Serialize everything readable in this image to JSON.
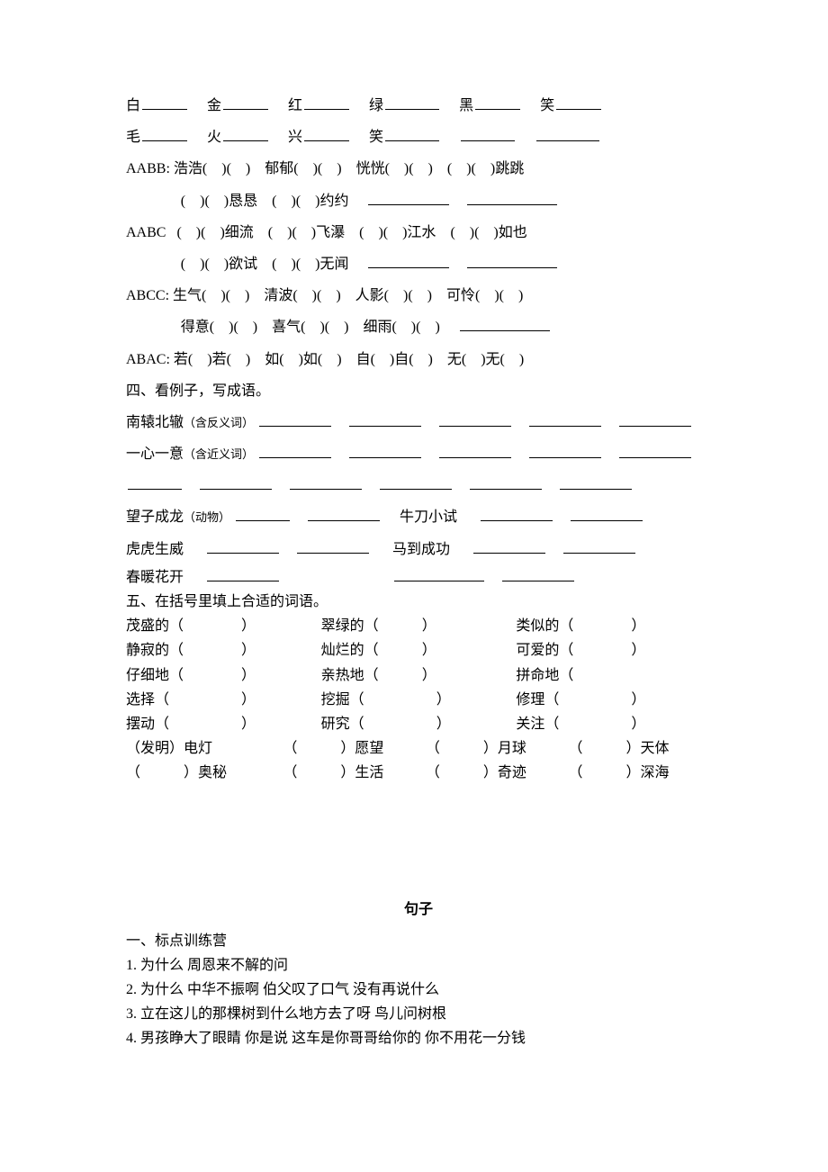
{
  "row1": {
    "chars": [
      "白",
      "金",
      "红",
      "绿",
      "黑",
      "笑"
    ]
  },
  "row2": {
    "chars": [
      "毛",
      "火",
      "兴",
      "笑"
    ]
  },
  "aabb": {
    "label": "AABB:",
    "items1": [
      "浩浩(　)(　)",
      "郁郁(　)(　)",
      "恍恍(　)(　)",
      "(　)(　)跳跳"
    ],
    "items2": [
      "(　)(　)恳恳",
      "(　)(　)约约"
    ]
  },
  "aabc": {
    "label": "AABC",
    "items1": [
      "(　)(　)细流",
      "(　)(　)飞瀑",
      "(　)(　)江水",
      "(　)(　)如也"
    ],
    "items2": [
      "(　)(　)欲试",
      "(　)(　)无闻"
    ]
  },
  "abcc": {
    "label": "ABCC:",
    "items1": [
      "生气(　)(　)",
      "清波(　)(　)",
      "人影(　)(　)",
      "可怜(　)(　)"
    ],
    "items2": [
      "得意(　)(　)",
      "喜气(　)(　)",
      "细雨(　)(　)"
    ]
  },
  "abac": {
    "label": "ABAC:",
    "items1": [
      "若(　)若(　)",
      "如(　)如(　)",
      "自(　)自(　)",
      "无(　)无(　)"
    ]
  },
  "section4": {
    "title": "四、看例子，写成语。",
    "lines": [
      {
        "lead": "南辕北辙",
        "note": "（含反义词）"
      },
      {
        "lead": "一心一意",
        "note": "（含近义词）"
      }
    ],
    "animal_lead": "望子成龙",
    "animal_note": "（动物）",
    "animal_mid": "牛刀小试",
    "tiger": "虎虎生威",
    "horse": "马到成功",
    "spring_lead": "春暖花开"
  },
  "section5": {
    "title": "五、在括号里填上合适的词语。",
    "rows": [
      [
        "茂盛的（",
        "翠绿的（",
        "类似的（"
      ],
      [
        "静寂的（",
        "灿烂的（",
        "可爱的（"
      ],
      [
        "仔细地（",
        "亲热地（",
        "拼命地（"
      ],
      [
        "选择（",
        "挖掘（",
        "修理（"
      ],
      [
        "摆动（",
        "研究（",
        "关注（"
      ]
    ],
    "row6": [
      "（发明）电灯",
      "（　　　）愿望",
      "（　　　）月球",
      "（　　　）天体"
    ],
    "row7": [
      "（　　　）奥秘",
      "（　　　）生活",
      "（　　　）奇迹",
      "（　　　）深海"
    ]
  },
  "sentences": {
    "title": "句子",
    "heading": "一、标点训练营",
    "items": [
      "1.  为什么    周恩来不解的问",
      "2.  为什么    中华不振啊      伯父叹了口气    没有再说什么",
      "3.  立在这儿的那棵树到什么地方去了呀    鸟儿问树根",
      "4.  男孩睁大了眼睛    你是说    这车是你哥哥给你的      你不用花一分钱"
    ]
  }
}
